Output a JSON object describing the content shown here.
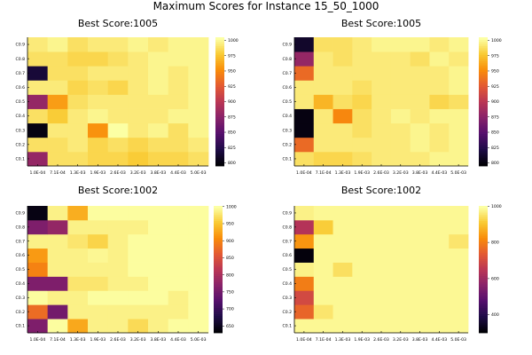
{
  "page_title": "Maximum Scores for Instance 15_50_1000",
  "chart_data": [
    {
      "type": "heatmap",
      "title": "Best Score:1005",
      "x": [
        "1.0E-04",
        "7.1E-04",
        "1.3E-03",
        "1.9E-03",
        "2.6E-03",
        "3.2E-03",
        "3.8E-03",
        "4.4E-03",
        "5.0E-03"
      ],
      "y": [
        "C0.1",
        "C0.2",
        "C0.3",
        "C0.4",
        "C0.5",
        "C0.6",
        "C0.7",
        "C0.8",
        "C0.9"
      ],
      "colorbar_ticks": [
        800,
        825,
        850,
        875,
        900,
        925,
        950,
        975,
        1000
      ],
      "zlim": [
        795,
        1005
      ],
      "values": [
        [
          880,
          990,
          990,
          985,
          985,
          980,
          985,
          985,
          990
        ],
        [
          990,
          990,
          995,
          985,
          990,
          985,
          990,
          990,
          995
        ],
        [
          800,
          995,
          995,
          955,
          1005,
          995,
          1000,
          990,
          1000
        ],
        [
          990,
          980,
          995,
          1000,
          995,
          995,
          995,
          1000,
          1000
        ],
        [
          880,
          960,
          990,
          995,
          995,
          995,
          995,
          995,
          1000
        ],
        [
          995,
          995,
          985,
          990,
          985,
          995,
          1000,
          995,
          1000
        ],
        [
          815,
          990,
          990,
          995,
          995,
          995,
          1000,
          995,
          1000
        ],
        [
          990,
          990,
          985,
          985,
          990,
          995,
          1000,
          1000,
          1000
        ],
        [
          995,
          1000,
          990,
          995,
          995,
          1000,
          995,
          1000,
          1000
        ]
      ]
    },
    {
      "type": "heatmap",
      "title": "Best Score:1005",
      "x": [
        "1.0E-04",
        "7.1E-04",
        "1.3E-03",
        "1.9E-03",
        "2.6E-03",
        "3.2E-03",
        "3.8E-03",
        "4.4E-03",
        "5.0E-03"
      ],
      "y": [
        "C0.1",
        "C0.2",
        "C0.3",
        "C0.4",
        "C0.5",
        "C0.6",
        "C0.7",
        "C0.8",
        "C0.9"
      ],
      "colorbar_ticks": [
        800,
        825,
        850,
        875,
        900,
        925,
        950,
        975,
        1000
      ],
      "zlim": [
        795,
        1005
      ],
      "values": [
        [
          990,
          985,
          985,
          990,
          995,
          995,
          995,
          1000,
          1000
        ],
        [
          935,
          995,
          995,
          995,
          995,
          995,
          1000,
          995,
          1000
        ],
        [
          800,
          995,
          995,
          990,
          995,
          995,
          1000,
          995,
          1000
        ],
        [
          800,
          995,
          950,
          990,
          995,
          1000,
          995,
          1000,
          1000
        ],
        [
          995,
          970,
          990,
          985,
          995,
          995,
          995,
          985,
          990
        ],
        [
          995,
          995,
          995,
          990,
          995,
          995,
          995,
          995,
          1000
        ],
        [
          935,
          995,
          995,
          995,
          995,
          995,
          995,
          995,
          1000
        ],
        [
          880,
          995,
          990,
          995,
          995,
          995,
          990,
          1000,
          995
        ],
        [
          810,
          990,
          990,
          995,
          1000,
          1000,
          1000,
          995,
          1000
        ]
      ]
    },
    {
      "type": "heatmap",
      "title": "Best Score:1002",
      "x": [
        "1.0E-04",
        "7.1E-04",
        "1.3E-03",
        "1.9E-03",
        "2.6E-03",
        "3.2E-03",
        "3.8E-03",
        "4.4E-03",
        "5.0E-03"
      ],
      "y": [
        "C0.1",
        "C0.2",
        "C0.3",
        "C0.4",
        "C0.5",
        "C0.6",
        "C0.7",
        "C0.8",
        "C0.9"
      ],
      "colorbar_ticks": [
        650,
        700,
        750,
        800,
        850,
        900,
        950,
        1000
      ],
      "zlim": [
        630,
        1002
      ],
      "values": [
        [
          760,
          1000,
          930,
          990,
          990,
          970,
          990,
          1000,
          1000
        ],
        [
          880,
          750,
          990,
          990,
          990,
          990,
          990,
          990,
          1000
        ],
        [
          1000,
          990,
          990,
          1000,
          1000,
          1000,
          1000,
          990,
          1000
        ],
        [
          760,
          760,
          980,
          980,
          990,
          990,
          1000,
          1000,
          1000
        ],
        [
          900,
          990,
          990,
          990,
          990,
          1000,
          1000,
          1000,
          1000
        ],
        [
          920,
          990,
          990,
          995,
          990,
          1000,
          1000,
          1000,
          1000
        ],
        [
          990,
          990,
          980,
          965,
          990,
          1000,
          1000,
          1000,
          1000
        ],
        [
          760,
          780,
          990,
          990,
          990,
          990,
          1000,
          1000,
          1000
        ],
        [
          640,
          990,
          935,
          1000,
          1000,
          1000,
          1000,
          1000,
          1000
        ]
      ]
    },
    {
      "type": "heatmap",
      "title": "Best Score:1002",
      "x": [
        "1.0E-04",
        "7.1E-04",
        "1.3E-03",
        "1.9E-03",
        "2.6E-03",
        "3.2E-03",
        "3.8E-03",
        "4.4E-03",
        "5.0E-03"
      ],
      "y": [
        "C0.1",
        "C0.2",
        "C0.3",
        "C0.4",
        "C0.5",
        "C0.6",
        "C0.7",
        "C0.8",
        "C0.9"
      ],
      "colorbar_ticks": [
        400,
        600,
        800,
        1000
      ],
      "zlim": [
        300,
        1002
      ],
      "values": [
        [
          990,
          990,
          990,
          990,
          990,
          990,
          990,
          990,
          990
        ],
        [
          760,
          960,
          990,
          990,
          990,
          990,
          990,
          990,
          990
        ],
        [
          700,
          990,
          990,
          990,
          990,
          990,
          990,
          990,
          990
        ],
        [
          800,
          990,
          990,
          990,
          990,
          990,
          990,
          990,
          990
        ],
        [
          980,
          990,
          950,
          990,
          990,
          990,
          990,
          990,
          990
        ],
        [
          310,
          990,
          990,
          990,
          990,
          990,
          990,
          990,
          990
        ],
        [
          840,
          990,
          990,
          990,
          990,
          990,
          990,
          990,
          960
        ],
        [
          640,
          920,
          990,
          990,
          990,
          990,
          990,
          990,
          990
        ],
        [
          980,
          990,
          990,
          990,
          990,
          990,
          990,
          990,
          990
        ]
      ]
    }
  ]
}
